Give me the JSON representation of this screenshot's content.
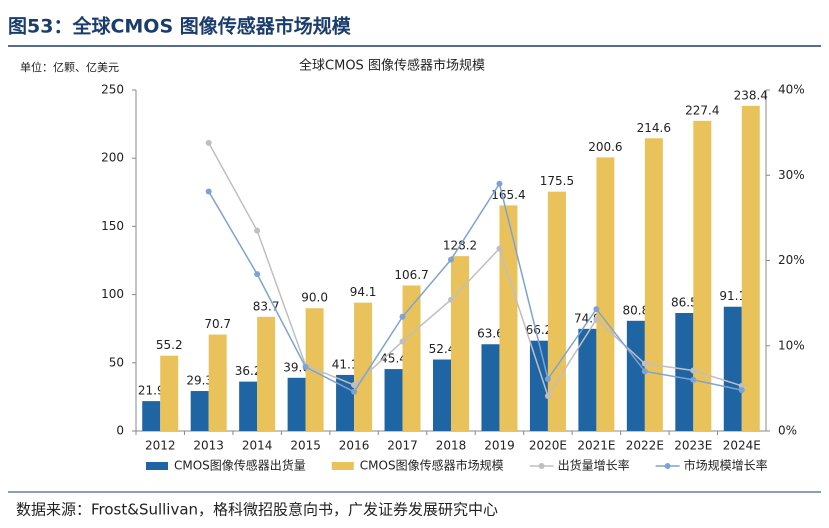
{
  "header": {
    "title": "图53：全球CMOS 图像传感器市场规模"
  },
  "chart_data": {
    "type": "bar",
    "title": "全球CMOS 图像传感器市场规模",
    "unit_label": "单位：亿颗、亿美元",
    "categories": [
      "2012",
      "2013",
      "2014",
      "2015",
      "2016",
      "2017",
      "2018",
      "2019",
      "2020E",
      "2021E",
      "2022E",
      "2023E",
      "2024E"
    ],
    "series": [
      {
        "name": "CMOS图像传感器出货量",
        "type": "bar",
        "color": "#1f64a3",
        "values": [
          21.9,
          29.3,
          36.2,
          39.0,
          41.1,
          45.4,
          52.4,
          63.6,
          66.2,
          74.9,
          80.8,
          86.5,
          91.1
        ],
        "value_labels": [
          "21.9",
          "29.3",
          "36.2",
          "39.0",
          "41.1",
          "45.4",
          "52.4",
          "63.6",
          "66.2",
          "74.9",
          "80.8",
          "86.5",
          "91.1"
        ]
      },
      {
        "name": "CMOS图像传感器市场规模",
        "type": "bar",
        "color": "#e9c25c",
        "values": [
          55.2,
          70.7,
          83.7,
          90.0,
          94.1,
          106.7,
          128.2,
          165.4,
          175.5,
          200.6,
          214.6,
          227.4,
          238.4
        ],
        "value_labels": [
          "55.2",
          "70.7",
          "83.7",
          "90.0",
          "94.1",
          "106.7",
          "128.2",
          "165.4",
          "175.5",
          "200.6",
          "214.6",
          "227.4",
          "238.4"
        ]
      },
      {
        "name": "出货量增长率",
        "type": "line",
        "axis": "y2",
        "color": "#bfbfbf",
        "values": [
          null,
          33.8,
          23.5,
          7.7,
          5.4,
          10.5,
          15.4,
          21.4,
          4.1,
          13.1,
          7.9,
          7.1,
          5.3
        ]
      },
      {
        "name": "市场规模增长率",
        "type": "line",
        "axis": "y2",
        "color": "#7ea3d3",
        "values": [
          null,
          28.1,
          18.4,
          7.5,
          4.6,
          13.4,
          20.1,
          29.0,
          6.1,
          14.3,
          7.0,
          6.0,
          4.8
        ]
      }
    ],
    "ylim": [
      0,
      250
    ],
    "yticks": [
      0,
      50,
      100,
      150,
      200,
      250
    ],
    "y2lim": [
      0,
      40
    ],
    "y2ticks": [
      {
        "value": 0,
        "label": "0%"
      },
      {
        "value": 10,
        "label": "10%"
      },
      {
        "value": 20,
        "label": "20%"
      },
      {
        "value": 30,
        "label": "30%"
      },
      {
        "value": 40,
        "label": "40%"
      }
    ],
    "legend": "bottom"
  },
  "footer": {
    "source": "数据来源：Frost&Sullivan，格科微招股意向书，广发证券发展研究中心"
  }
}
